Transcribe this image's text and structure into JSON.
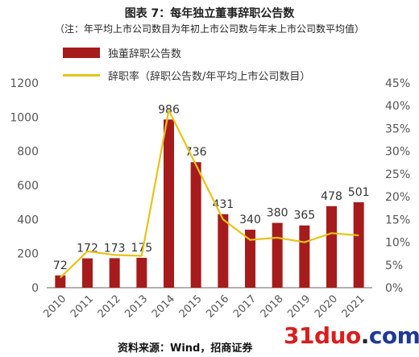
{
  "title": "图表 7：每年独立董事辞职公告数",
  "subtitle": "（注：年平均上市公司数目为年初上市公司数与年末上市公司数平均值）",
  "source": "资料来源：Wind，招商证券",
  "watermark": {
    "num": "31duo",
    "dot": ".",
    "txt": "com"
  },
  "colors": {
    "bar": "#a61c1c",
    "line": "#e8c21a",
    "axis": "#666666",
    "grid": "#d8d8d8"
  },
  "chart_data": {
    "type": "bar",
    "categories": [
      "2010",
      "2011",
      "2012",
      "2013",
      "2014",
      "2015",
      "2016",
      "2017",
      "2018",
      "2019",
      "2020",
      "2021"
    ],
    "series": [
      {
        "name": "独董辞职公告数",
        "type": "bar",
        "axis": "left",
        "values": [
          72,
          172,
          173,
          175,
          986,
          736,
          431,
          340,
          380,
          365,
          478,
          501
        ]
      },
      {
        "name": "辞职率（辞职公告数/年平均上市公司数目）",
        "type": "line",
        "axis": "right",
        "values": [
          2.2,
          8.0,
          7.2,
          7.0,
          39.0,
          27.0,
          15.0,
          10.5,
          11.0,
          10.0,
          12.0,
          11.5
        ]
      }
    ],
    "data_labels": [
      "72",
      "172",
      "173",
      "175",
      "986",
      "736",
      "431",
      "340",
      "380",
      "365",
      "478",
      "501"
    ],
    "y_left": {
      "ylim": [
        0,
        1200
      ],
      "ticks": [
        "0",
        "200",
        "400",
        "600",
        "800",
        "1000",
        "1200"
      ]
    },
    "y_right": {
      "ylim": [
        0,
        45
      ],
      "ticks": [
        "0%",
        "5%",
        "10%",
        "15%",
        "20%",
        "25%",
        "30%",
        "35%",
        "40%",
        "45%"
      ]
    },
    "grid": false,
    "legend_position": "top-left"
  }
}
